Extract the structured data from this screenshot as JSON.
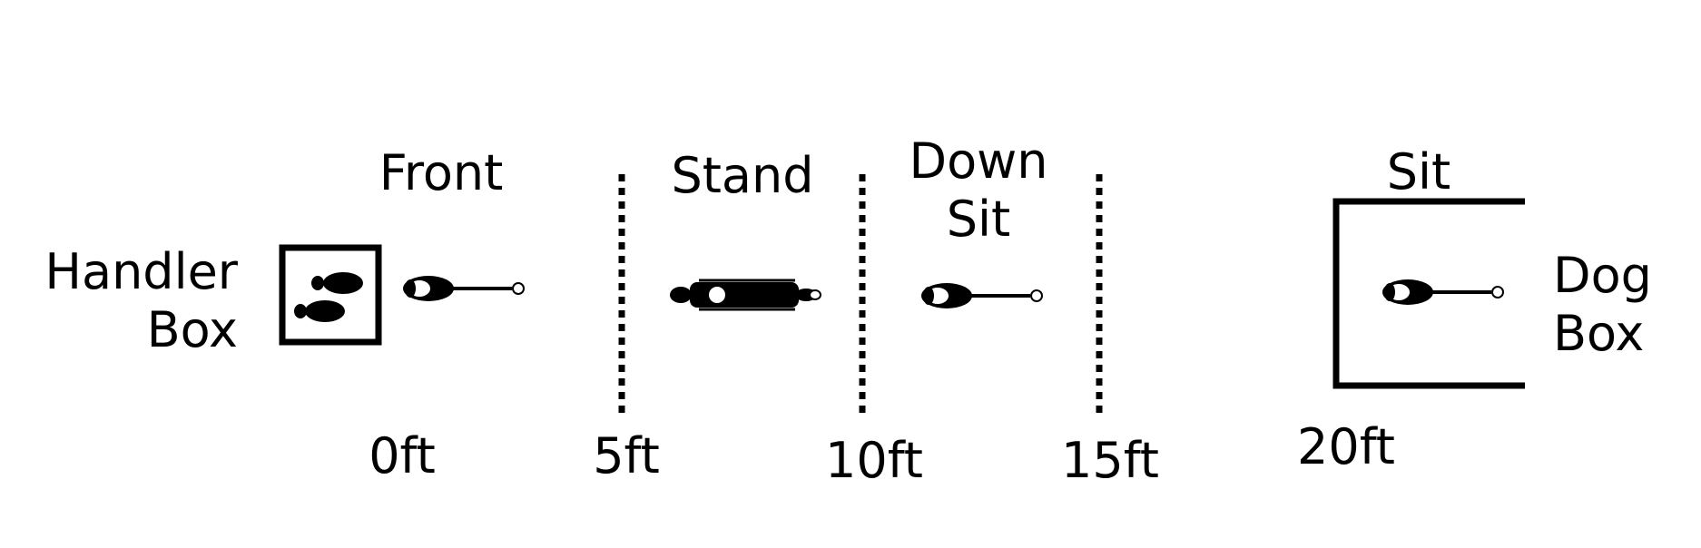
{
  "labels": {
    "handler_box": [
      "Handler",
      "Box"
    ],
    "dog_box": [
      "Dog",
      "Box"
    ],
    "positions": {
      "front": "Front",
      "stand": "Stand",
      "down_sit": [
        "Down",
        "Sit"
      ],
      "sit": "Sit"
    },
    "distances": [
      "0ft",
      "5ft",
      "10ft",
      "15ft",
      "20ft"
    ]
  },
  "icons": {
    "handler": "footprints-icon",
    "dog_sitting": "dog-sitting-icon",
    "dog_standing": "dog-standing-icon"
  },
  "colors": {
    "ink": "#000000",
    "background": "#ffffff"
  }
}
